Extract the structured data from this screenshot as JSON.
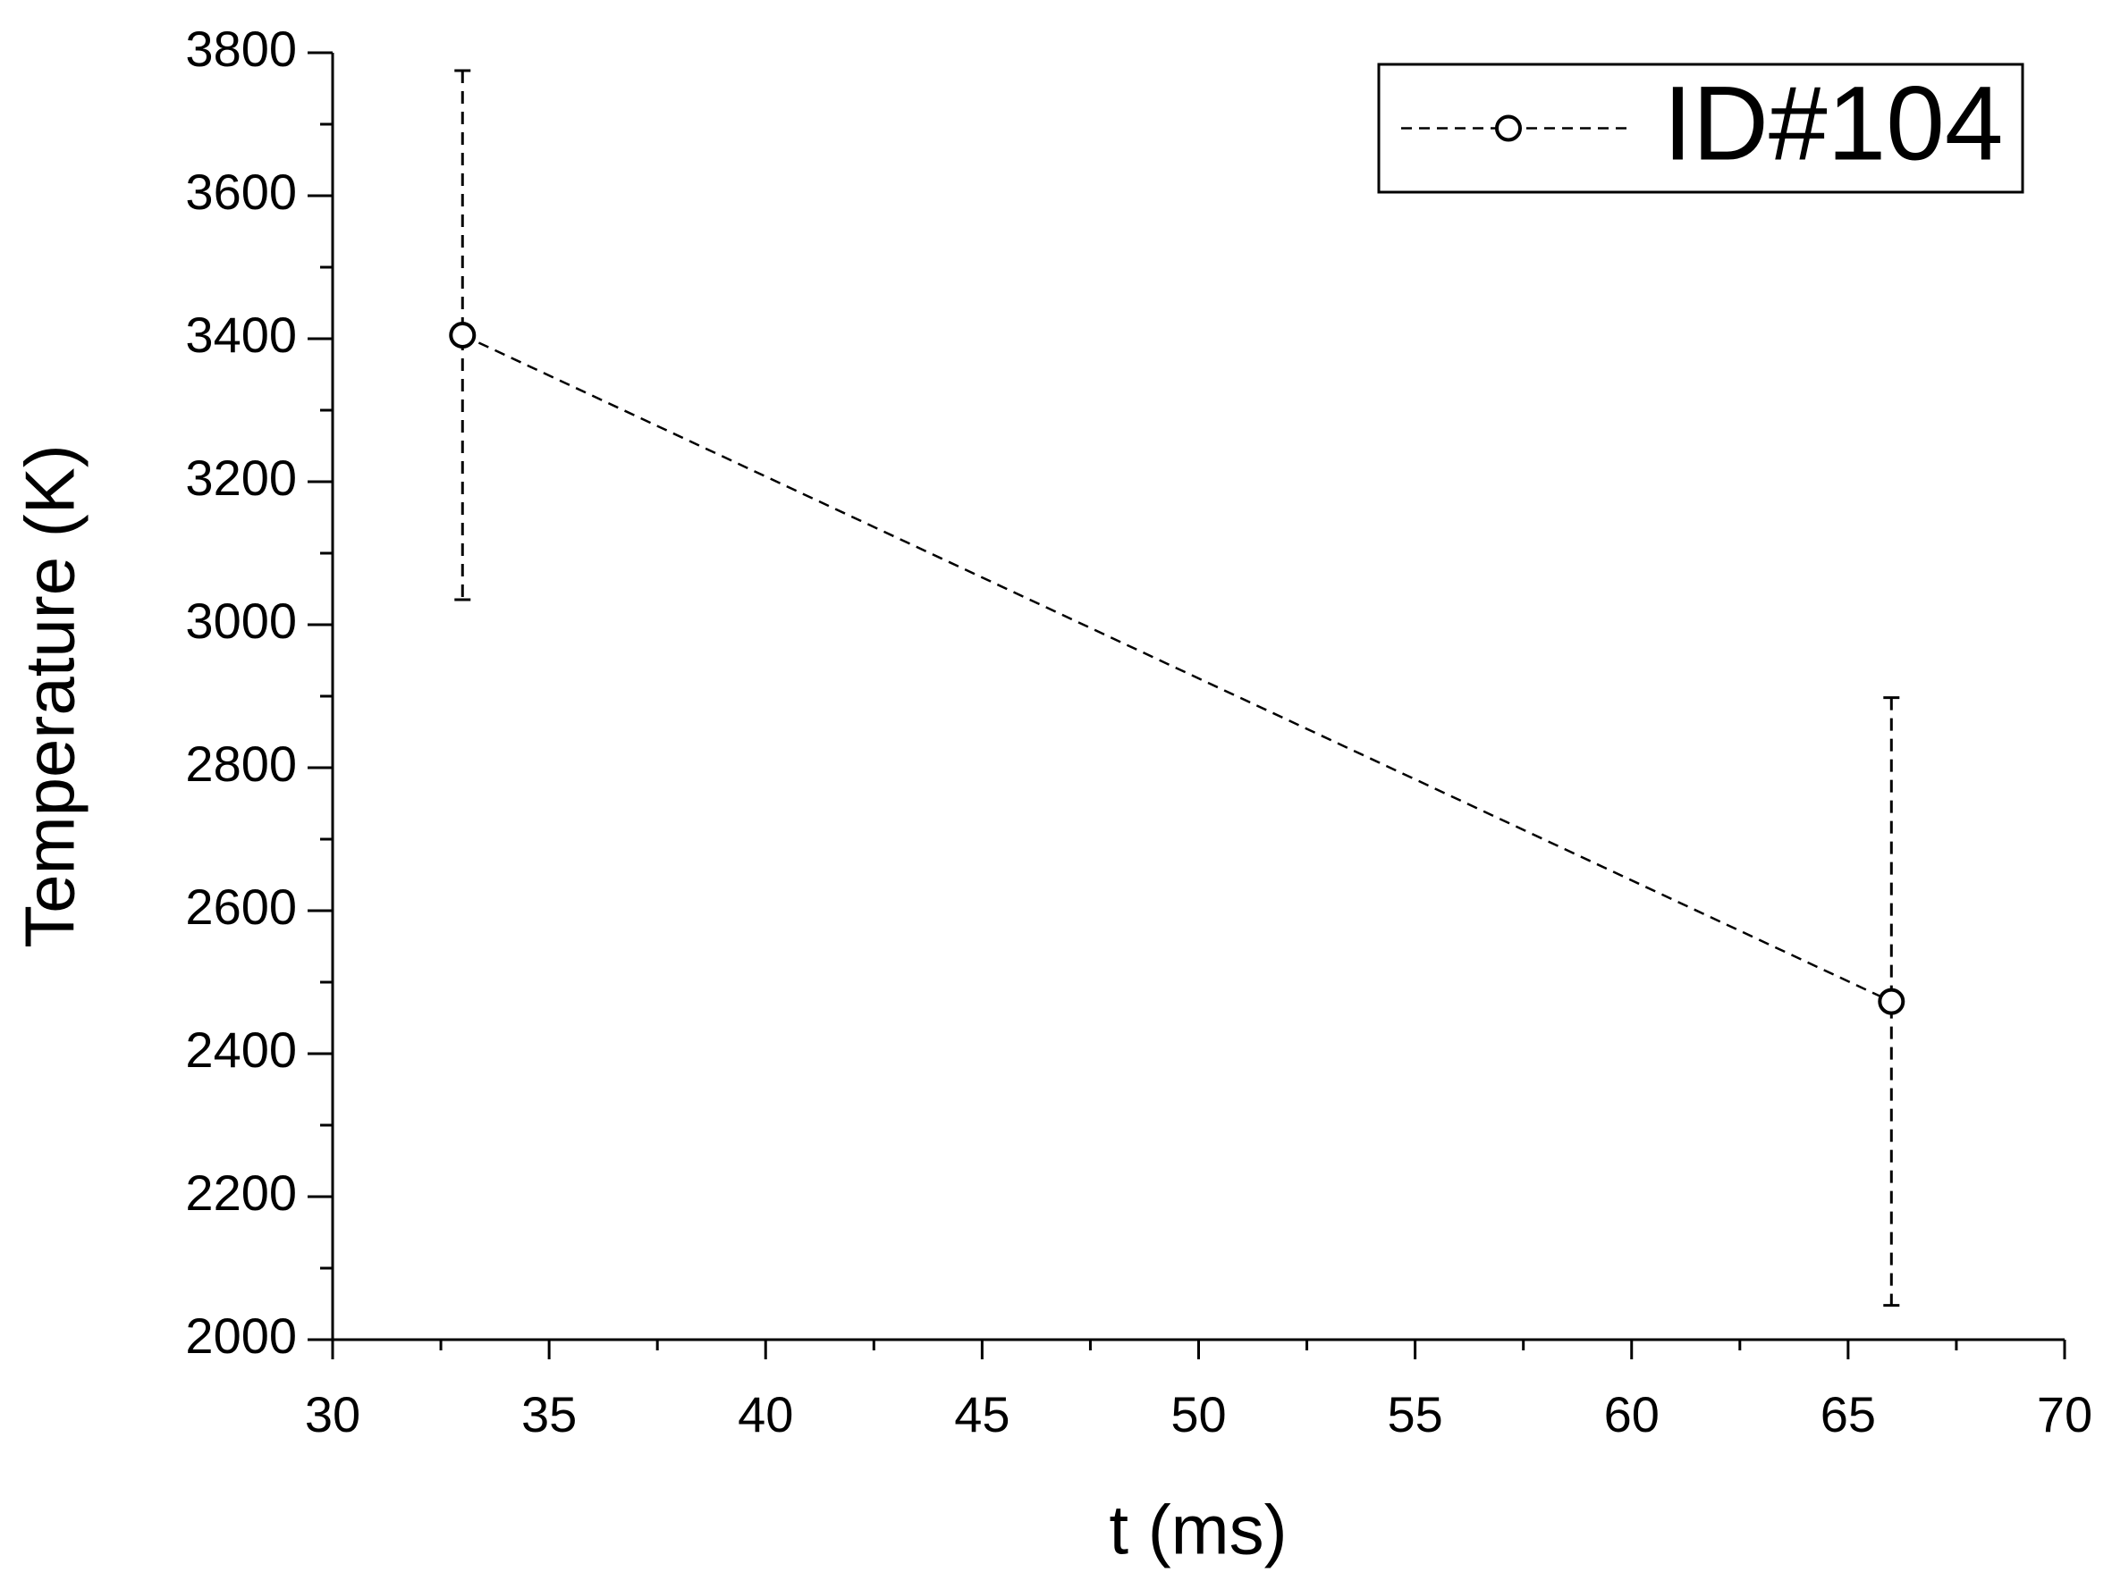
{
  "chart_data": {
    "type": "line",
    "xlabel": "t (ms)",
    "ylabel": "Temperature (K)",
    "x": [
      33,
      66
    ],
    "series": [
      {
        "name": "ID#104",
        "color": "#000000",
        "values": [
          3405,
          2473
        ],
        "errors": [
          370,
          425
        ]
      }
    ],
    "xlim": [
      30,
      70
    ],
    "xticks": [
      30,
      35,
      40,
      45,
      50,
      55,
      60,
      65,
      70
    ],
    "ylim": [
      2000,
      3800
    ],
    "yticks": [
      2000,
      2200,
      2400,
      2600,
      2800,
      3000,
      3200,
      3400,
      3600,
      3800
    ],
    "legend": "upper right"
  }
}
